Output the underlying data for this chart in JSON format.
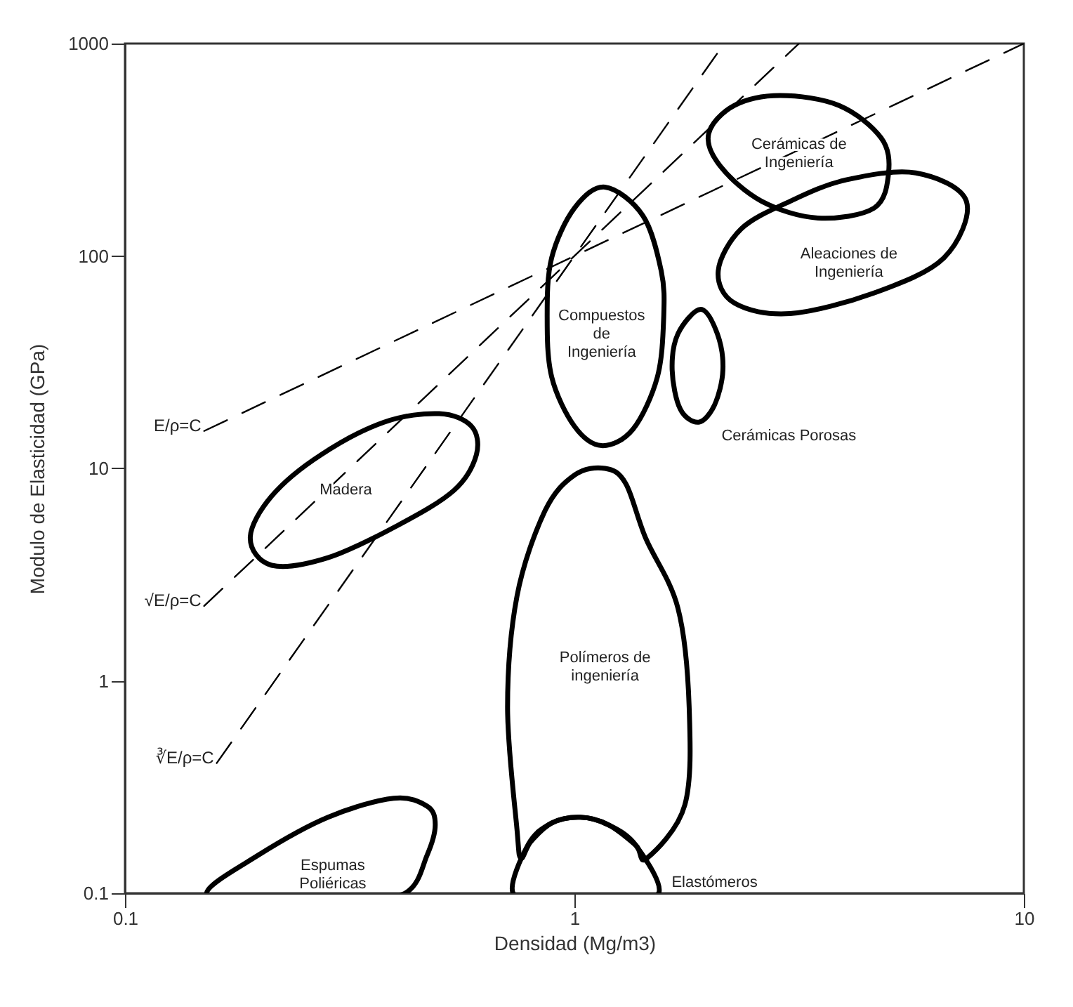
{
  "chart_data": {
    "type": "line",
    "xlabel": "Densidad (Mg/m3)",
    "ylabel": "Modulo de Elasticidad (GPa)",
    "log": "xy",
    "xlim": [
      0.1,
      10
    ],
    "ylim": [
      0.1,
      1000
    ],
    "xticks": [
      0.1,
      1,
      10
    ],
    "yticks": [
      0.1,
      1,
      10,
      100,
      1000
    ],
    "grid": false,
    "marker": "none",
    "series": [
      {
        "name": "E/ρ=C",
        "color": "#000000",
        "line_style": "dashed",
        "x": [
          0.15,
          10
        ],
        "values": [
          15,
          1000
        ]
      },
      {
        "name": "√E/ρ=C",
        "color": "#000000",
        "line_style": "dashed",
        "x": [
          0.15,
          3.16
        ],
        "values": [
          2.25,
          1000
        ]
      },
      {
        "name": "∛E/ρ=C",
        "color": "#000000",
        "line_style": "dashed",
        "x": [
          0.16,
          2.15
        ],
        "values": [
          0.41,
          994
        ]
      }
    ],
    "annotations": [
      "Cerámicas de\nIngeniería",
      "Aleaciones de\nIngeniería",
      "Compuestos\nde\nIngeniería",
      "Cerámicas Porosas",
      "Madera",
      "Polímeros de\ningeniería",
      "Espumas\nPoliéricas",
      "Elastómeros"
    ]
  }
}
